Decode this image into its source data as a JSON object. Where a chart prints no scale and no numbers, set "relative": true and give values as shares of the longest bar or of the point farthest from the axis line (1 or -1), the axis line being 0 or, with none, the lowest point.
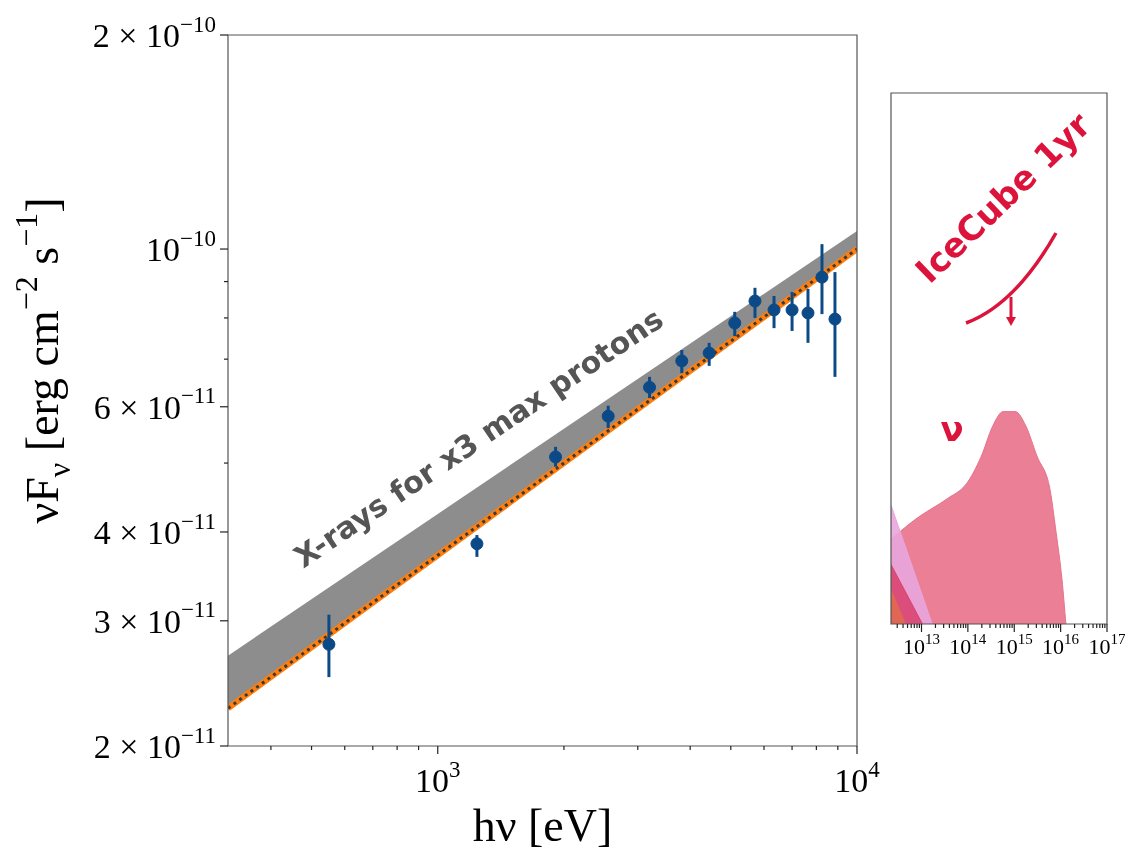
{
  "chart_data": [
    {
      "type": "scatter",
      "xlabel": "hν [eV]",
      "ylabel": "νF$_{ν}$ [erg cm$^{−2}$ s$^{−1}$]",
      "log": "xy",
      "grid": false,
      "legend": false,
      "xlim": [
        316,
        10000
      ],
      "ylim": [
        2e-11,
        2e-10
      ],
      "xticks": [
        {
          "value": 400,
          "label": null
        },
        {
          "value": 500,
          "label": null
        },
        {
          "value": 600,
          "label": null
        },
        {
          "value": 700,
          "label": null
        },
        {
          "value": 800,
          "label": null
        },
        {
          "value": 900,
          "label": null
        },
        {
          "value": 1000,
          "label": "10$^{3}$"
        },
        {
          "value": 2000,
          "label": null
        },
        {
          "value": 3000,
          "label": null
        },
        {
          "value": 4000,
          "label": null
        },
        {
          "value": 5000,
          "label": null
        },
        {
          "value": 6000,
          "label": null
        },
        {
          "value": 7000,
          "label": null
        },
        {
          "value": 8000,
          "label": null
        },
        {
          "value": 9000,
          "label": null
        },
        {
          "value": 10000,
          "label": "10$^{4}$"
        }
      ],
      "yticks": [
        {
          "value": 2e-11,
          "label": "2 × 10$^{−11}$"
        },
        {
          "value": 3e-11,
          "label": "3 × 10$^{−11}$"
        },
        {
          "value": 4e-11,
          "label": "4 × 10$^{−11}$"
        },
        {
          "value": 5e-11,
          "label": null
        },
        {
          "value": 6e-11,
          "label": "6 × 10$^{−11}$"
        },
        {
          "value": 7e-11,
          "label": null
        },
        {
          "value": 8e-11,
          "label": null
        },
        {
          "value": 9e-11,
          "label": null
        },
        {
          "value": 1e-10,
          "label": "10$^{−10}$"
        },
        {
          "value": 2e-10,
          "label": "2 × 10$^{−10}$"
        }
      ],
      "series": [
        {
          "type": "line",
          "color": "#ff7f0e",
          "line_style": "solid",
          "x": [
            316,
            1000,
            10000
          ],
          "values": [
            2.26e-11,
            3.71e-11,
            1e-10
          ]
        },
        {
          "type": "line",
          "color": "#3a3a3a",
          "line_style": "dotted",
          "x": [
            316,
            1000,
            10000
          ],
          "values": [
            2.26e-11,
            3.71e-11,
            1e-10
          ],
          "lower": [
            2.26e-11,
            3.71e-11,
            1e-10
          ],
          "upper": [
            2.68e-11,
            4.24e-11,
            1.06e-10
          ]
        },
        {
          "color": "#0c4a87",
          "marker": "circle",
          "x": [
            550,
            1240,
            1910,
            2550,
            3200,
            3820,
            4440,
            5110,
            5710,
            6340,
            7000,
            7640,
            8250,
            8860
          ],
          "values": [
            2.78e-11,
            3.85e-11,
            5.1e-11,
            5.82e-11,
            6.39e-11,
            6.96e-11,
            7.14e-11,
            7.87e-11,
            8.45e-11,
            8.21e-11,
            8.21e-11,
            8.13e-11,
            9.13e-11,
            7.97e-11
          ],
          "errors": [
            [
              2.5e-11,
              3.06e-11
            ],
            [
              3.69e-11,
              3.96e-11
            ],
            [
              4.94e-11,
              5.27e-11
            ],
            [
              5.6e-11,
              6.02e-11
            ],
            [
              6.17e-11,
              6.61e-11
            ],
            [
              6.69e-11,
              7.21e-11
            ],
            [
              6.85e-11,
              7.38e-11
            ],
            [
              7.54e-11,
              8.16e-11
            ],
            [
              8e-11,
              8.82e-11
            ],
            [
              7.74e-11,
              8.59e-11
            ],
            [
              7.67e-11,
              8.7e-11
            ],
            [
              7.38e-11,
              8.79e-11
            ],
            [
              8.1e-11,
              1.016e-10
            ],
            [
              6.61e-11,
              9.28e-11
            ]
          ]
        }
      ],
      "annotations": [
        "X-rays for x3 max protons"
      ]
    },
    {
      "type": "area",
      "relative": true,
      "log": "x",
      "grid": false,
      "legend": false,
      "tick_labels": "x",
      "xlim": [
        2200000000000.0,
        1e+17
      ],
      "xticks": [
        {
          "value": 3000000000000.0,
          "label": null
        },
        {
          "value": 4000000000000.0,
          "label": null
        },
        {
          "value": 5000000000000.0,
          "label": null
        },
        {
          "value": 6000000000000.0,
          "label": null
        },
        {
          "value": 7000000000000.0,
          "label": null
        },
        {
          "value": 8000000000000.0,
          "label": null
        },
        {
          "value": 9000000000000.0,
          "label": null
        },
        {
          "value": 10000000000000.0,
          "label": "10$^{13}$"
        },
        {
          "value": 20000000000000.0,
          "label": null
        },
        {
          "value": 30000000000000.0,
          "label": null
        },
        {
          "value": 40000000000000.0,
          "label": null
        },
        {
          "value": 50000000000000.0,
          "label": null
        },
        {
          "value": 60000000000000.0,
          "label": null
        },
        {
          "value": 70000000000000.0,
          "label": null
        },
        {
          "value": 80000000000000.0,
          "label": null
        },
        {
          "value": 90000000000000.0,
          "label": null
        },
        {
          "value": 100000000000000.0,
          "label": "10$^{14}$"
        },
        {
          "value": 200000000000000.0,
          "label": null
        },
        {
          "value": 300000000000000.0,
          "label": null
        },
        {
          "value": 400000000000000.0,
          "label": null
        },
        {
          "value": 500000000000000.0,
          "label": null
        },
        {
          "value": 600000000000000.0,
          "label": null
        },
        {
          "value": 700000000000000.0,
          "label": null
        },
        {
          "value": 800000000000000.0,
          "label": null
        },
        {
          "value": 900000000000000.0,
          "label": null
        },
        {
          "value": 1000000000000000.0,
          "label": "10$^{15}$"
        },
        {
          "value": 2000000000000000.0,
          "label": null
        },
        {
          "value": 3000000000000000.0,
          "label": null
        },
        {
          "value": 4000000000000000.0,
          "label": null
        },
        {
          "value": 5000000000000000.0,
          "label": null
        },
        {
          "value": 6000000000000000.0,
          "label": null
        },
        {
          "value": 7000000000000000.0,
          "label": null
        },
        {
          "value": 8000000000000000.0,
          "label": null
        },
        {
          "value": 9000000000000000.0,
          "label": null
        },
        {
          "value": 1e+16,
          "label": "10$^{16}$"
        },
        {
          "value": 2e+16,
          "label": null
        },
        {
          "value": 3e+16,
          "label": null
        },
        {
          "value": 4e+16,
          "label": null
        },
        {
          "value": 5e+16,
          "label": null
        },
        {
          "value": 6e+16,
          "label": null
        },
        {
          "value": 7e+16,
          "label": null
        },
        {
          "value": 8e+16,
          "label": null
        },
        {
          "value": 9e+16,
          "label": null
        },
        {
          "value": 1e+17,
          "label": "10$^{17}$"
        }
      ],
      "series": [
        {
          "color": "#e8718a",
          "x": [
            2200000000000.0,
            8200000000000.0,
            36000000000000.0,
            93000000000000.0,
            195000000000000.0,
            340000000000000.0,
            580000000000000.0,
            1050000000000000.0,
            1800000000000000.0,
            3100000000000000.0,
            5700000000000000.0,
            8000000000000000.0,
            1.07e+16,
            1.3e+16
          ],
          "values": [
            0.4,
            0.5,
            0.59,
            0.66,
            0.79,
            0.93,
            1,
            1,
            0.93,
            0.79,
            0.65,
            0.43,
            0.21,
            0
          ]
        },
        {
          "color": "#e9a6dc",
          "x": [
            2200000000000.0,
            17000000000000.0
          ],
          "values": [
            0.56,
            0
          ]
        },
        {
          "color": "#d94470",
          "x": [
            2200000000000.0,
            10500000000000.0
          ],
          "values": [
            0.28,
            0
          ]
        },
        {
          "color": "#e06a50",
          "x": [
            2200000000000.0,
            4500000000000.0
          ],
          "values": [
            0.16,
            0
          ]
        }
      ],
      "annotations": [
        "IceCube 1yr",
        "ν"
      ]
    }
  ]
}
